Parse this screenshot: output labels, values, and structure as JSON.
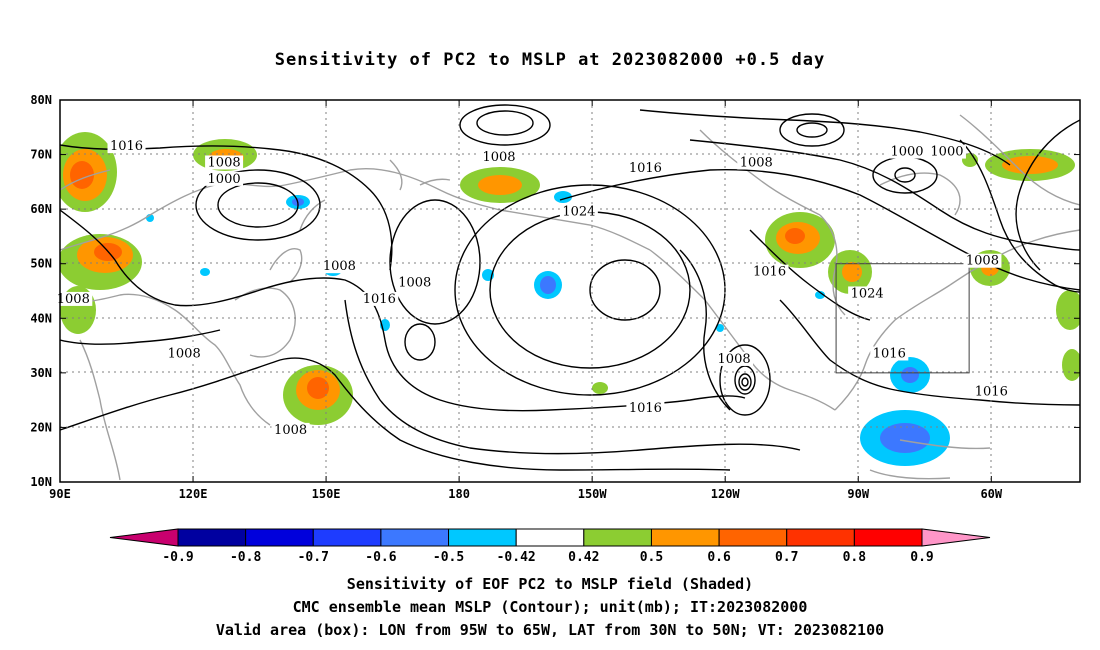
{
  "title": "Sensitivity of PC2 to MSLP at 2023082000 +0.5 day",
  "lat_labels": [
    "80N",
    "70N",
    "60N",
    "50N",
    "40N",
    "30N",
    "20N",
    "10N"
  ],
  "lon_labels": [
    "90E",
    "120E",
    "150E",
    "180",
    "150W",
    "120W",
    "90W",
    "60W"
  ],
  "colorbar": {
    "labels": [
      "-0.9",
      "-0.8",
      "-0.7",
      "-0.6",
      "-0.5",
      "-0.42",
      "0.42",
      "0.5",
      "0.6",
      "0.7",
      "0.8",
      "0.9"
    ],
    "colors": [
      "#c8006e",
      "#0000a0",
      "#0000dc",
      "#1e3cff",
      "#3c78ff",
      "#00c8ff",
      "#ffffff",
      "#8ccd32",
      "#ff9600",
      "#ff6400",
      "#ff3200",
      "#ff0000",
      "#ff96c8"
    ]
  },
  "contour_labels": [
    {
      "text": "1016",
      "lon": 105,
      "lat": 71
    },
    {
      "text": "1008",
      "lon": 127,
      "lat": 68
    },
    {
      "text": "1000",
      "lon": 127,
      "lat": 65
    },
    {
      "text": "1008",
      "lon": 93,
      "lat": 43
    },
    {
      "text": "1008",
      "lon": 118,
      "lat": 33
    },
    {
      "text": "1008",
      "lon": 153,
      "lat": 49
    },
    {
      "text": "1016",
      "lon": 162,
      "lat": 43
    },
    {
      "text": "1008",
      "lon": 170,
      "lat": 46
    },
    {
      "text": "1008",
      "lon": 189,
      "lat": 69
    },
    {
      "text": "1024",
      "lon": 207,
      "lat": 59
    },
    {
      "text": "1016",
      "lon": 222,
      "lat": 67
    },
    {
      "text": "1008",
      "lon": 247,
      "lat": 68
    },
    {
      "text": "1000",
      "lon": 281,
      "lat": 70
    },
    {
      "text": "1000",
      "lon": 290,
      "lat": 70
    },
    {
      "text": "1016",
      "lon": 250,
      "lat": 48
    },
    {
      "text": "1024",
      "lon": 272,
      "lat": 44
    },
    {
      "text": "1008",
      "lon": 298,
      "lat": 50
    },
    {
      "text": "1016",
      "lon": 277,
      "lat": 33
    },
    {
      "text": "1008",
      "lon": 242,
      "lat": 32
    },
    {
      "text": "1016",
      "lon": 222,
      "lat": 23
    },
    {
      "text": "1016",
      "lon": 300,
      "lat": 26
    },
    {
      "text": "1008",
      "lon": 142,
      "lat": 19
    }
  ],
  "valid_box": {
    "lon": [
      265,
      295
    ],
    "lat": [
      30,
      50
    ]
  },
  "footer": {
    "line1": "Sensitivity of EOF PC2 to MSLP field (Shaded)",
    "line2": "CMC ensemble mean MSLP (Contour); unit(mb); IT:2023082000",
    "line3": "Valid area (box): LON from 95W to 65W, LAT from 30N to 50N; VT: 2023082100"
  }
}
